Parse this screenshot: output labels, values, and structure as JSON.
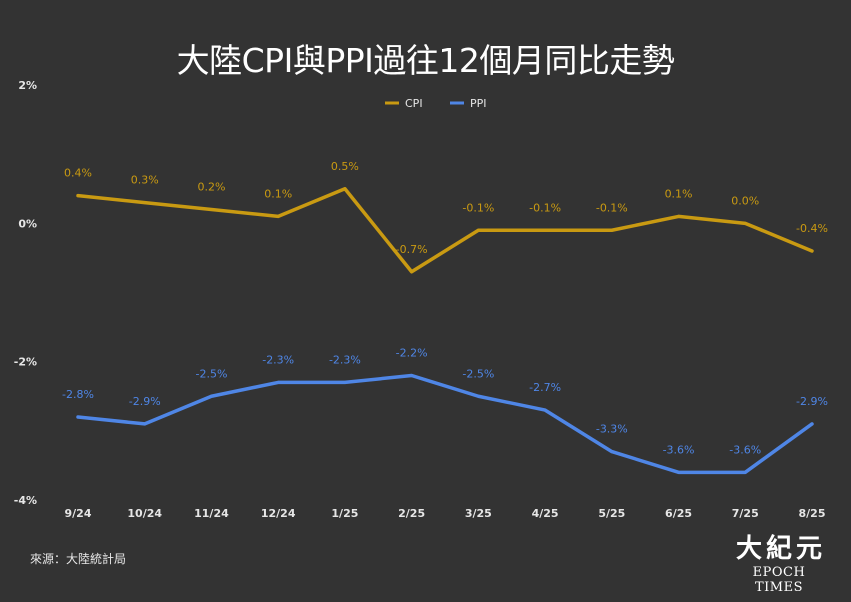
{
  "title": "大陸CPI與PPI過往12個月同比走勢",
  "source": "來源：大陸統計局",
  "brand": {
    "chinese": "大紀元",
    "english": "EPOCH TIMES"
  },
  "colors": {
    "background": "#333333",
    "cpi": "#c99a12",
    "ppi": "#4f86e6",
    "text": "#ffffff",
    "axis_text": "#e6e6e6"
  },
  "chart_data": {
    "type": "line",
    "title": "大陸CPI與PPI過往12個月同比走勢",
    "categories": [
      "9/24",
      "10/24",
      "11/24",
      "12/24",
      "1/25",
      "2/25",
      "3/25",
      "4/25",
      "5/25",
      "6/25",
      "7/25",
      "8/25"
    ],
    "yticks": [
      "2%",
      "0%",
      "-2%",
      "-4%"
    ],
    "ytick_values": [
      2,
      0,
      -2,
      -4
    ],
    "ylim": [
      -4,
      2
    ],
    "unit": "%",
    "grid": false,
    "legend_position": "top-center",
    "series": [
      {
        "name": "CPI",
        "color": "#c99a12",
        "values": [
          0.4,
          0.3,
          0.2,
          0.1,
          0.5,
          -0.7,
          -0.1,
          -0.1,
          -0.1,
          0.1,
          0.0,
          -0.4
        ],
        "labels": [
          "0.4%",
          "0.3%",
          "0.2%",
          "0.1%",
          "0.5%",
          "-0.7%",
          "-0.1%",
          "-0.1%",
          "-0.1%",
          "0.1%",
          "0.0%",
          "-0.4%"
        ]
      },
      {
        "name": "PPI",
        "color": "#4f86e6",
        "values": [
          -2.8,
          -2.9,
          -2.5,
          -2.3,
          -2.3,
          -2.2,
          -2.5,
          -2.7,
          -3.3,
          -3.6,
          -3.6,
          -2.9
        ],
        "labels": [
          "-2.8%",
          "-2.9%",
          "-2.5%",
          "-2.3%",
          "-2.3%",
          "-2.2%",
          "-2.5%",
          "-2.7%",
          "-3.3%",
          "-3.6%",
          "-3.6%",
          "-2.9%"
        ]
      }
    ]
  }
}
